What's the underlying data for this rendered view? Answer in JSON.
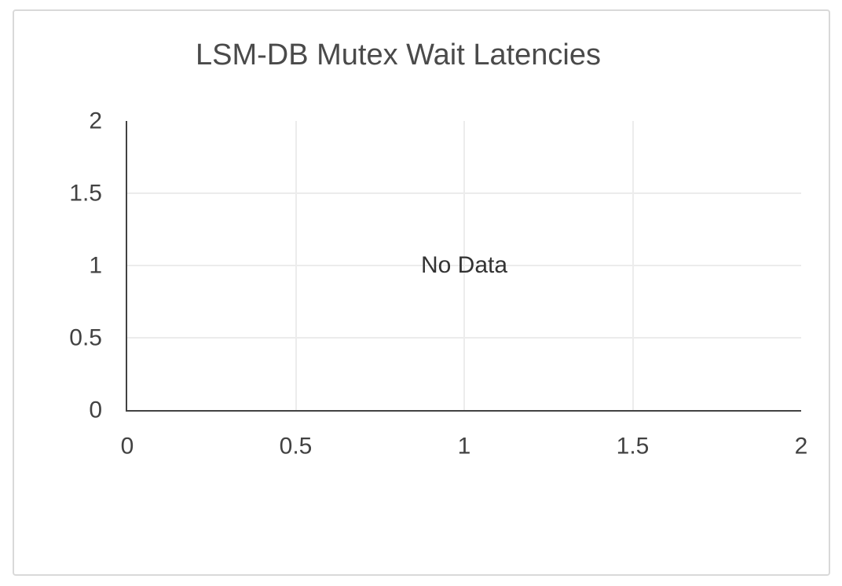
{
  "panel": {
    "background": "#ffffff",
    "border_color": "#d9d9d9"
  },
  "chart_data": {
    "type": "line",
    "title": "LSM-DB Mutex Wait Latencies",
    "no_data_label": "No Data",
    "series": [],
    "xlabel": "",
    "ylabel": "",
    "xlim": [
      0,
      2
    ],
    "ylim": [
      0,
      2
    ],
    "x_tick_values": [
      0,
      0.5,
      1,
      1.5,
      2
    ],
    "x_tick_labels": [
      "0",
      "0.5",
      "1",
      "1.5",
      "2"
    ],
    "y_tick_values": [
      0,
      0.5,
      1,
      1.5,
      2
    ],
    "y_tick_labels": [
      "0",
      "0.5",
      "1",
      "1.5",
      "2"
    ],
    "grid": true,
    "gridlines_at_edges": false,
    "legend_position": "none"
  },
  "colors": {
    "title": "#4a4a4a",
    "tick_label": "#424242",
    "axis_line": "#424242",
    "gridline": "#ececec",
    "no_data_text": "#333333",
    "panel_border": "#d9d9d9",
    "panel_bg": "#ffffff"
  }
}
